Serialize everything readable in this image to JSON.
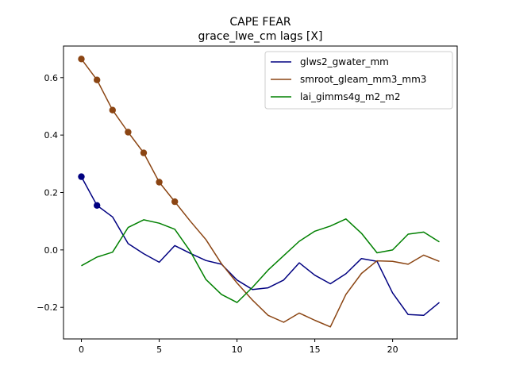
{
  "chart_data": {
    "type": "line",
    "title": "CAPE FEAR",
    "subtitle": "grace_lwe_cm lags [X]",
    "xlabel": "",
    "ylabel": "",
    "xlim": [
      -1.15,
      24.15
    ],
    "ylim": [
      -0.31,
      0.71
    ],
    "x_ticks": [
      0,
      5,
      10,
      15,
      20
    ],
    "y_ticks": [
      -0.2,
      0.0,
      0.2,
      0.4,
      0.6
    ],
    "y_tick_labels": [
      "−0.2",
      "0.0",
      "0.2",
      "0.4",
      "0.6"
    ],
    "grid": false,
    "legend_position": "top-right",
    "x": [
      0,
      1,
      2,
      3,
      4,
      5,
      6,
      7,
      8,
      9,
      10,
      11,
      12,
      13,
      14,
      15,
      16,
      17,
      18,
      19,
      20,
      21,
      22,
      23
    ],
    "series": [
      {
        "name": "glws2_gwater_mm",
        "color": "#000080",
        "values": [
          0.255,
          0.155,
          0.115,
          0.022,
          -0.013,
          -0.043,
          0.015,
          -0.012,
          -0.037,
          -0.05,
          -0.105,
          -0.138,
          -0.132,
          -0.105,
          -0.045,
          -0.088,
          -0.118,
          -0.083,
          -0.03,
          -0.04,
          -0.15,
          -0.225,
          -0.228,
          -0.183
        ],
        "markers_at": [
          0,
          1
        ]
      },
      {
        "name": "smroot_gleam_mm3_mm3",
        "color": "#8B4513",
        "values": [
          0.665,
          0.592,
          0.487,
          0.41,
          0.338,
          0.236,
          0.168,
          0.1,
          0.036,
          -0.048,
          -0.115,
          -0.175,
          -0.228,
          -0.252,
          -0.22,
          -0.245,
          -0.268,
          -0.155,
          -0.082,
          -0.038,
          -0.04,
          -0.05,
          -0.018,
          -0.04
        ],
        "markers_at": [
          0,
          1,
          2,
          3,
          4,
          5,
          6
        ]
      },
      {
        "name": "lai_gimms4g_m2_m2",
        "color": "#008000",
        "values": [
          -0.055,
          -0.025,
          -0.008,
          0.078,
          0.105,
          0.093,
          0.072,
          -0.005,
          -0.103,
          -0.155,
          -0.183,
          -0.13,
          -0.07,
          -0.02,
          0.03,
          0.065,
          0.083,
          0.108,
          0.058,
          -0.01,
          0.0,
          0.055,
          0.062,
          0.028
        ],
        "markers_at": []
      }
    ]
  }
}
